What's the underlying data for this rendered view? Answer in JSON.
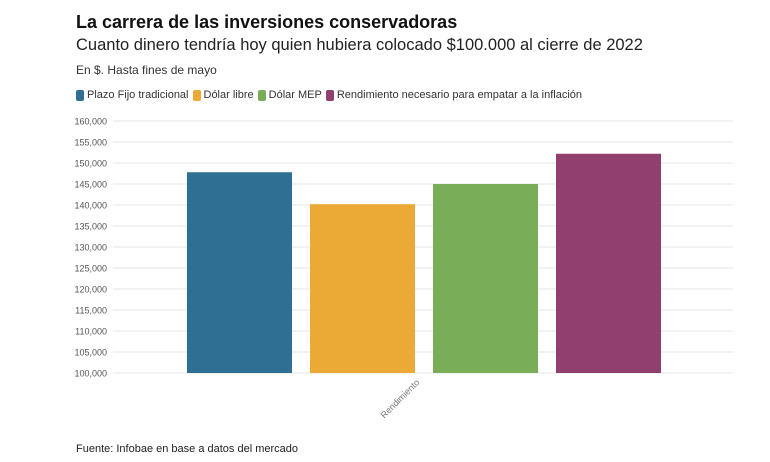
{
  "title": "La carrera de las inversiones conservadoras",
  "subtitle": "Cuanto dinero tendría hoy quien hubiera colocado $100.000 al cierre de 2022",
  "note": "En $. Hasta fines de mayo",
  "source": "Fuente: Infobae en base a datos del mercado",
  "chart_data": {
    "type": "bar",
    "categories": [
      "Rendimiento"
    ],
    "series": [
      {
        "name": "Plazo Fijo tradicional",
        "color": "#2e6f93",
        "values": [
          147800
        ]
      },
      {
        "name": "Dólar libre",
        "color": "#ebaa36",
        "values": [
          140200
        ]
      },
      {
        "name": "Dólar MEP",
        "color": "#7aad57",
        "values": [
          145000
        ]
      },
      {
        "name": "Rendimiento necesario para empatar a la inflación",
        "color": "#913f6f",
        "values": [
          152200
        ]
      }
    ],
    "ylim": [
      100000,
      160000
    ],
    "yticks": [
      "100,000",
      "105,000",
      "110,000",
      "115,000",
      "120,000",
      "125,000",
      "130,000",
      "135,000",
      "140,000",
      "145,000",
      "150,000",
      "155,000",
      "160,000"
    ],
    "grid": true,
    "legend": "top-left"
  }
}
